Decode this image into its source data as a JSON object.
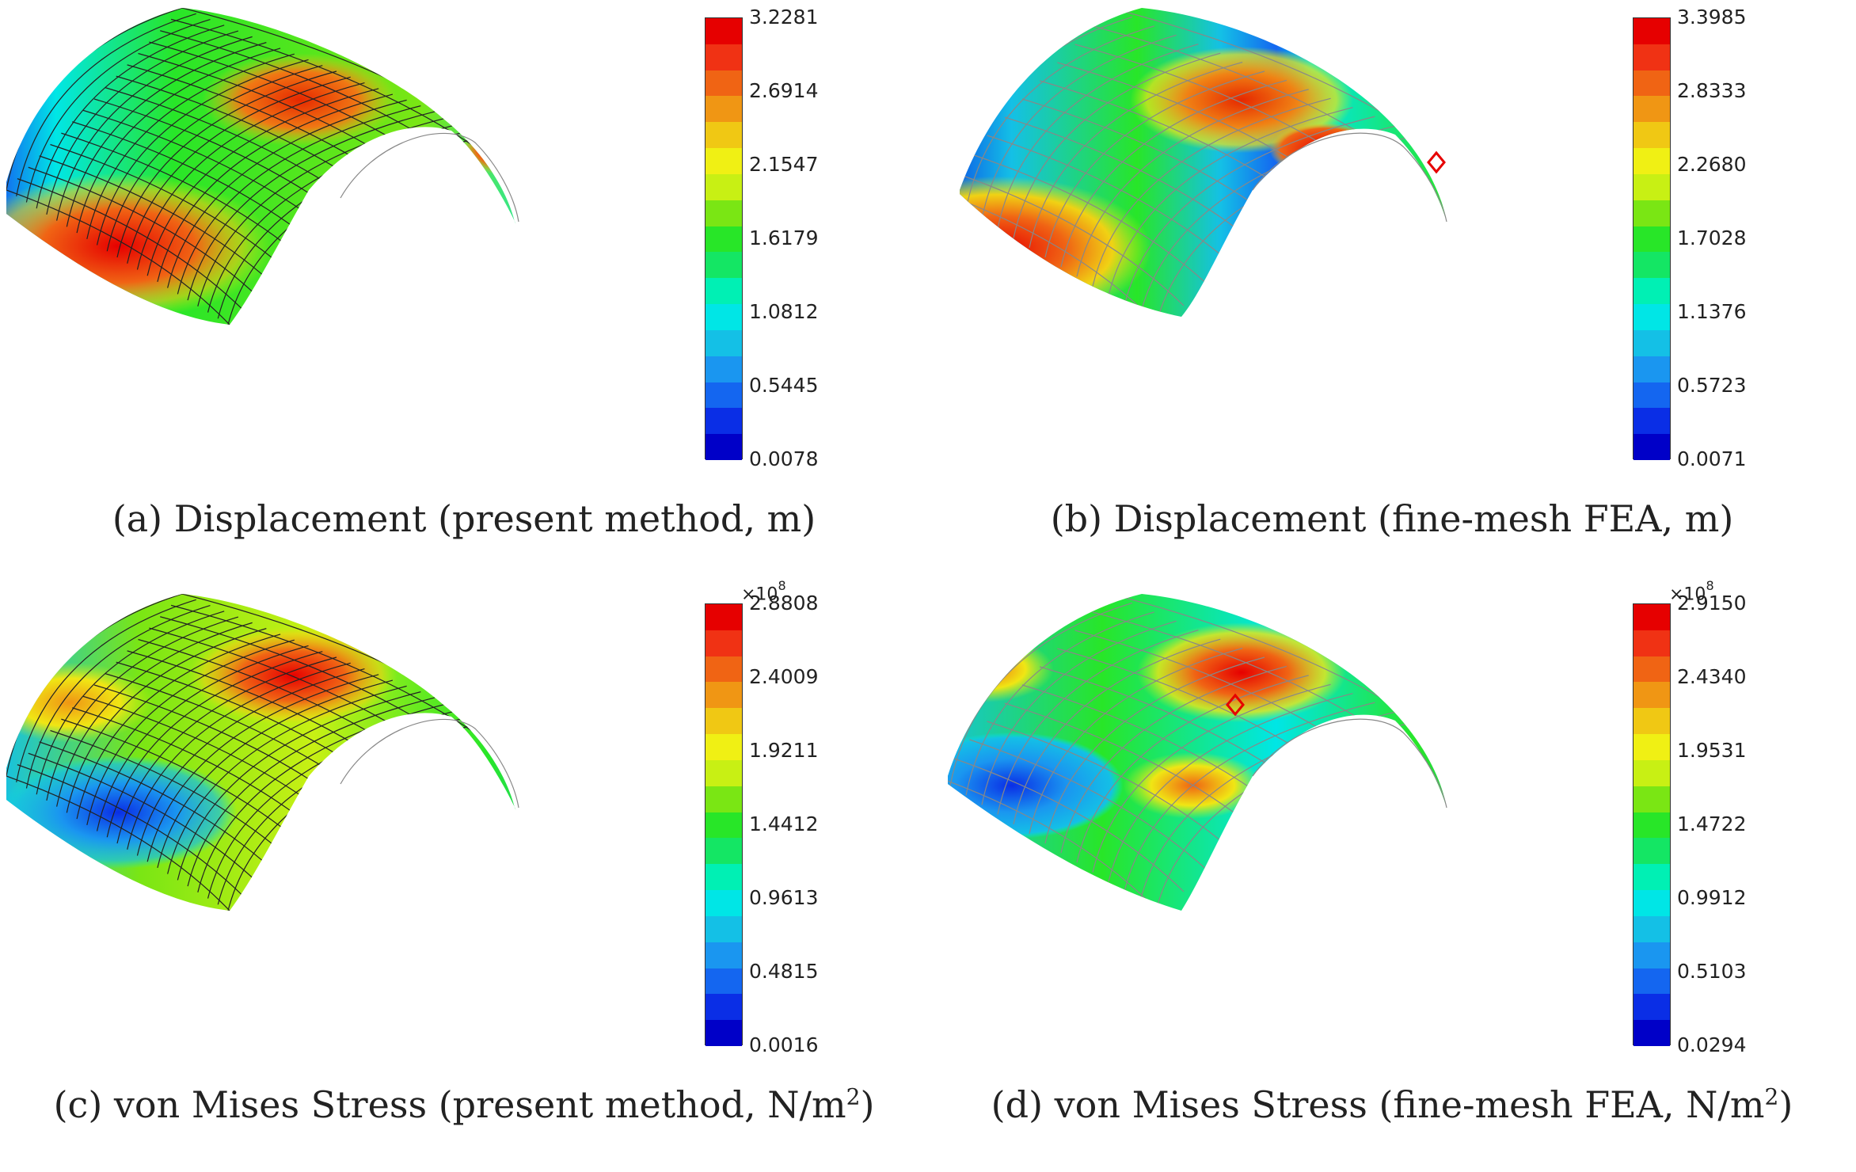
{
  "panels": [
    {
      "caption": "(a) Displacement (present method, m)",
      "colorbar": {
        "exponent": "",
        "ticks": [
          "3.2281",
          "2.6914",
          "2.1547",
          "1.6179",
          "1.0812",
          "0.5445",
          "0.0078"
        ]
      },
      "mesh": "coarse"
    },
    {
      "caption": "(b) Displacement (fine-mesh FEA, m)",
      "colorbar": {
        "exponent": "",
        "ticks": [
          "3.3985",
          "2.8333",
          "2.2680",
          "1.7028",
          "1.1376",
          "0.5723",
          "0.0071"
        ]
      },
      "mesh": "fine"
    },
    {
      "caption_main": "(c) von Mises Stress (present method, N/m",
      "caption_sup": "2",
      "caption_end": ")",
      "colorbar": {
        "exponent_base": "×10",
        "exponent_power": "8",
        "ticks": [
          "2.8808",
          "2.4009",
          "1.9211",
          "1.4412",
          "0.9613",
          "0.4815",
          "0.0016"
        ]
      },
      "mesh": "coarse"
    },
    {
      "caption_main": "(d) von Mises Stress (fine-mesh FEA, N/m",
      "caption_sup": "2",
      "caption_end": ")",
      "colorbar": {
        "exponent_base": "×10",
        "exponent_power": "8",
        "ticks": [
          "2.9150",
          "2.4340",
          "1.9531",
          "1.4722",
          "0.9912",
          "0.5103",
          "0.0294"
        ]
      },
      "mesh": "fine"
    }
  ],
  "colormap": [
    "#0000c8",
    "#0a2ee6",
    "#1466f0",
    "#1a96f0",
    "#14c0e6",
    "#00e6e6",
    "#00f0b4",
    "#14e664",
    "#28e628",
    "#7ae614",
    "#c8f014",
    "#f0f014",
    "#f0c814",
    "#f09614",
    "#f06414",
    "#f03214",
    "#e60000"
  ]
}
